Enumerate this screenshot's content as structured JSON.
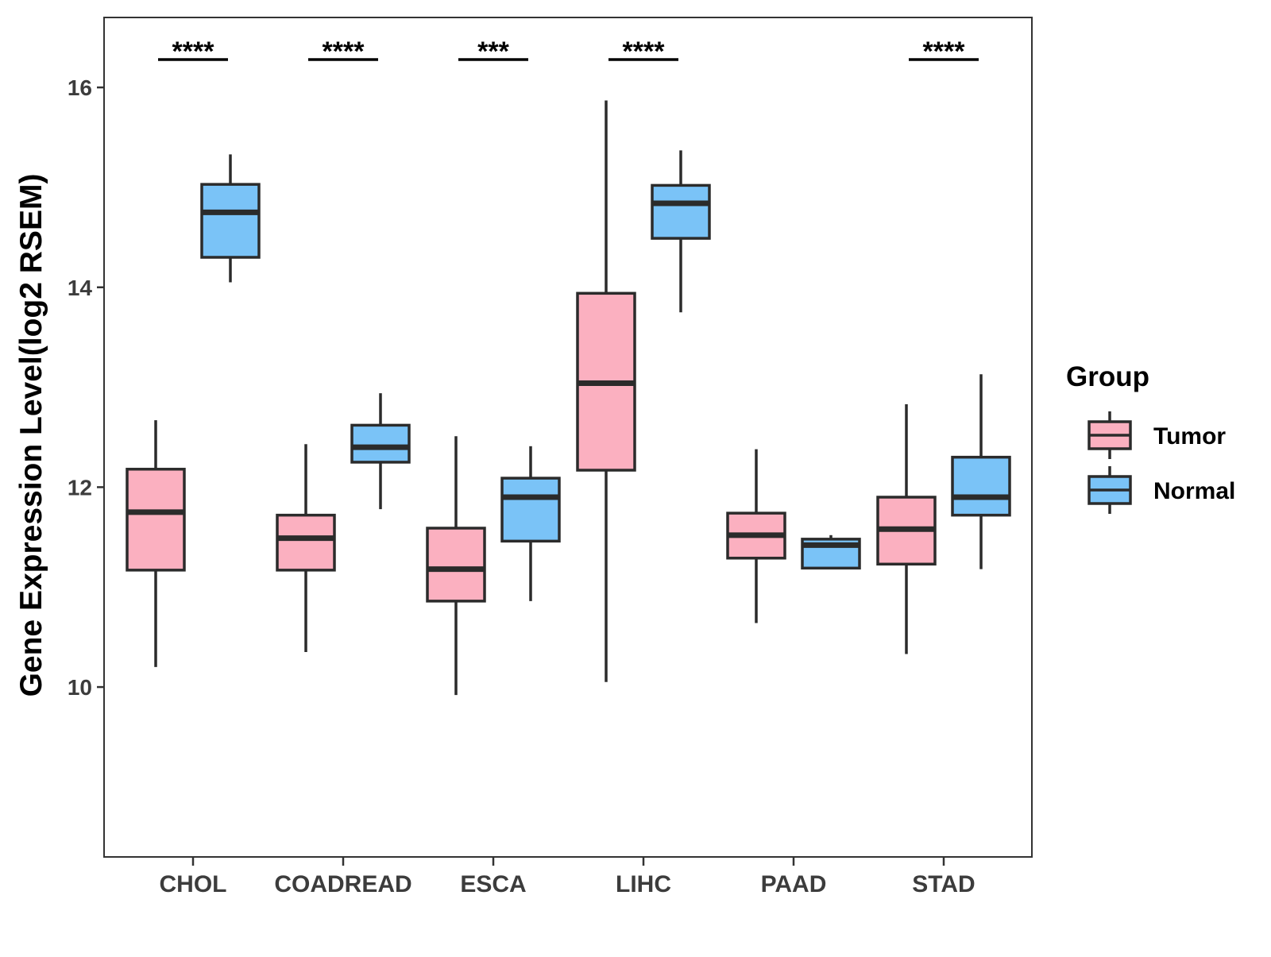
{
  "chart_data": {
    "type": "boxplot",
    "title": "",
    "xlabel": "",
    "ylabel": "Gene Expression Level(log2 RSEM)",
    "ylim": [
      8.3,
      16.7
    ],
    "yticks": [
      10,
      12,
      14,
      16
    ],
    "categories": [
      "CHOL",
      "COADREAD",
      "ESCA",
      "LIHC",
      "PAAD",
      "STAD"
    ],
    "series": [
      {
        "name": "Tumor",
        "color": "#fbb0c0",
        "boxes": [
          {
            "min": 10.2,
            "q1": 11.17,
            "median": 11.75,
            "q3": 12.18,
            "max": 12.67
          },
          {
            "min": 10.35,
            "q1": 11.17,
            "median": 11.49,
            "q3": 11.72,
            "max": 12.43
          },
          {
            "min": 9.92,
            "q1": 10.86,
            "median": 11.18,
            "q3": 11.59,
            "max": 12.51
          },
          {
            "min": 10.05,
            "q1": 12.17,
            "median": 13.04,
            "q3": 13.94,
            "max": 15.87
          },
          {
            "min": 10.64,
            "q1": 11.29,
            "median": 11.52,
            "q3": 11.74,
            "max": 12.38
          },
          {
            "min": 10.33,
            "q1": 11.23,
            "median": 11.58,
            "q3": 11.9,
            "max": 12.83
          }
        ]
      },
      {
        "name": "Normal",
        "color": "#7ac3f7",
        "boxes": [
          {
            "min": 14.05,
            "q1": 14.3,
            "median": 14.75,
            "q3": 15.03,
            "max": 15.33
          },
          {
            "min": 11.78,
            "q1": 12.25,
            "median": 12.4,
            "q3": 12.62,
            "max": 12.94
          },
          {
            "min": 10.86,
            "q1": 11.46,
            "median": 11.9,
            "q3": 12.09,
            "max": 12.41
          },
          {
            "min": 13.75,
            "q1": 14.49,
            "median": 14.84,
            "q3": 15.02,
            "max": 15.37
          },
          {
            "min": 11.19,
            "q1": 11.19,
            "median": 11.42,
            "q3": 11.48,
            "max": 11.52
          },
          {
            "min": 11.18,
            "q1": 11.72,
            "median": 11.9,
            "q3": 12.3,
            "max": 13.13
          }
        ]
      }
    ],
    "significance": [
      "****",
      "****",
      "***",
      "****",
      "",
      "****"
    ],
    "legend": {
      "title": "Group",
      "items": [
        "Tumor",
        "Normal"
      ],
      "placement": "right"
    }
  }
}
